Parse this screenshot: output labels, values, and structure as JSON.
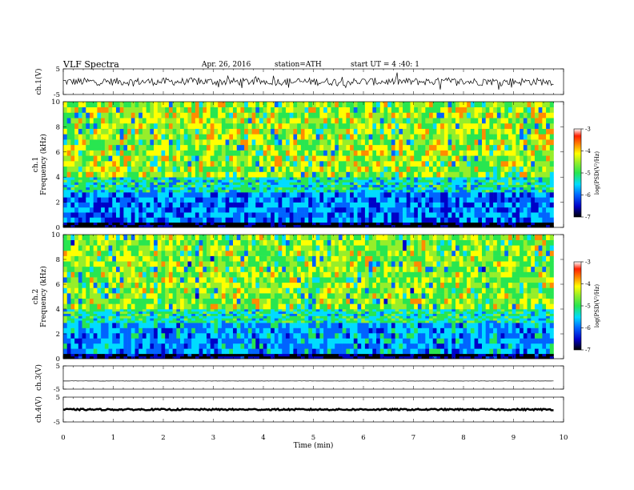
{
  "header": {
    "title": "VLF  Spectra",
    "date": "Apr. 26, 2016",
    "station": "station=ATH",
    "start": "start  UT  =   4  :40: 1"
  },
  "colors": {
    "waveform": "#000000",
    "colormap": [
      "#000000",
      "#0000c8",
      "#0064ff",
      "#00dcff",
      "#28e650",
      "#96ee2a",
      "#ffff00",
      "#ff8c00",
      "#ff1e00",
      "#ffffff"
    ]
  },
  "chart_data": [
    {
      "id": "ch1-waveform",
      "type": "line",
      "ylabel": "ch.1(V)",
      "ylim": [
        -5,
        5
      ],
      "y_ticks": [
        "5",
        "-5"
      ],
      "xlim": [
        0,
        10
      ],
      "description_of_trace": "noisy waveform centered near 0 V, amplitude about +/-1.5 V with spikes",
      "approx_level": 0,
      "approx_amplitude": 1.5
    },
    {
      "id": "ch1-spectrogram",
      "type": "heatmap",
      "ylabel": "ch.1\nFrequency  (kHz)",
      "ylim": [
        0,
        10
      ],
      "y_ticks": [
        "0",
        "2",
        "4",
        "6",
        "8",
        "10"
      ],
      "xlim": [
        0,
        10
      ],
      "data_extent_min": 9.8,
      "colorbar": {
        "label": "log(PSD(V²/Hz)",
        "range": [
          -7,
          -3
        ],
        "ticks": [
          "-3",
          "-4",
          "-5",
          "-6",
          "-7"
        ]
      },
      "bands": [
        {
          "freq_khz": [
            0,
            0.4
          ],
          "log_psd": -6.8
        },
        {
          "freq_khz": [
            0.4,
            2.8
          ],
          "log_psd": -5.7
        },
        {
          "freq_khz": [
            2.8,
            4.0
          ],
          "log_psd": -5.1
        },
        {
          "freq_khz": [
            4.0,
            10
          ],
          "log_psd": -4.2
        }
      ]
    },
    {
      "id": "ch2-spectrogram",
      "type": "heatmap",
      "ylabel": "ch.2\nFrequency  (kHz)",
      "ylim": [
        0,
        10
      ],
      "y_ticks": [
        "0",
        "2",
        "4",
        "6",
        "8",
        "10"
      ],
      "xlim": [
        0,
        10
      ],
      "data_extent_min": 9.8,
      "colorbar": {
        "label": "log(PSD(V²/Hz)",
        "range": [
          -7,
          -3
        ],
        "ticks": [
          "-3",
          "-4",
          "-5",
          "-6",
          "-7"
        ]
      },
      "bands": [
        {
          "freq_khz": [
            0,
            0.4
          ],
          "log_psd": -6.6
        },
        {
          "freq_khz": [
            0.4,
            2.9
          ],
          "log_psd": -5.5
        },
        {
          "freq_khz": [
            2.9,
            4.0
          ],
          "log_psd": -5.0
        },
        {
          "freq_khz": [
            4.0,
            10
          ],
          "log_psd": -4.3
        }
      ]
    },
    {
      "id": "ch3-waveform",
      "type": "line",
      "ylabel": "ch.3(V)",
      "ylim": [
        -5,
        5
      ],
      "y_ticks": [
        "5",
        "-5"
      ],
      "xlim": [
        0,
        10
      ],
      "approx_level": -1.5,
      "approx_amplitude": 0.05
    },
    {
      "id": "ch4-waveform",
      "type": "line",
      "ylabel": "ch.4(V)",
      "ylim": [
        -5,
        5
      ],
      "y_ticks": [
        "5",
        "-5"
      ],
      "xlim": [
        0,
        10
      ],
      "approx_level": 0,
      "approx_amplitude": 0.3
    }
  ],
  "x_axis": {
    "label": "Time  (min)",
    "ticks": [
      "0",
      "1",
      "2",
      "3",
      "4",
      "5",
      "6",
      "7",
      "8",
      "9",
      "10"
    ],
    "range": [
      0,
      10
    ]
  }
}
